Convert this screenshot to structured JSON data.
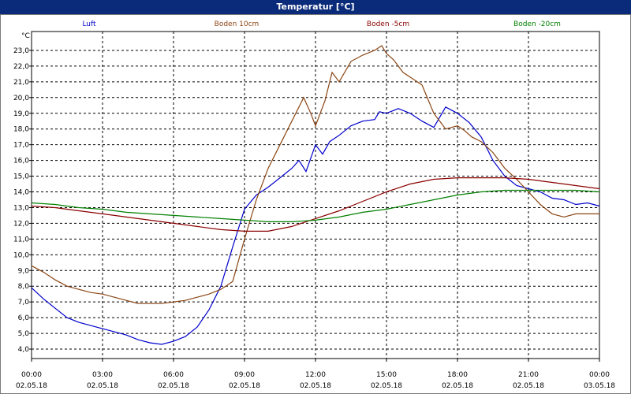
{
  "window": {
    "title": "Temperatur [°C]"
  },
  "chart_data": {
    "type": "line",
    "title": "Temperatur [°C]",
    "ylabel": "°C",
    "ylim": [
      3.4,
      24.2
    ],
    "yticks": [
      4.0,
      5.0,
      6.0,
      7.0,
      8.0,
      9.0,
      10.0,
      11.0,
      12.0,
      13.0,
      14.0,
      15.0,
      16.0,
      17.0,
      18.0,
      19.0,
      20.0,
      21.0,
      22.0,
      23.0
    ],
    "ytick_labels": [
      "4,0",
      "5,0",
      "6,0",
      "7,0",
      "8,0",
      "9,0",
      "10,0",
      "11,0",
      "12,0",
      "13,0",
      "14,0",
      "15,0",
      "16,0",
      "17,0",
      "18,0",
      "19,0",
      "20,0",
      "21,0",
      "22,0",
      "23,0"
    ],
    "xlim": [
      0,
      24
    ],
    "xticks": [
      0,
      3,
      6,
      9,
      12,
      15,
      18,
      21,
      24
    ],
    "xtick_time": [
      "00:00",
      "03:00",
      "06:00",
      "09:00",
      "12:00",
      "15:00",
      "18:00",
      "21:00",
      "00:00"
    ],
    "xtick_date": [
      "02.05.18",
      "02.05.18",
      "02.05.18",
      "02.05.18",
      "02.05.18",
      "02.05.18",
      "02.05.18",
      "02.05.18",
      "03.05.18"
    ],
    "grid": true,
    "legend_position": "top",
    "series": [
      {
        "name": "Luft",
        "color": "#0000cc",
        "x": [
          0,
          0.5,
          1,
          1.5,
          2,
          2.5,
          3,
          3.5,
          4,
          4.5,
          5,
          5.5,
          6,
          6.5,
          7,
          7.5,
          8,
          8.5,
          9,
          9.5,
          10,
          10.5,
          11,
          11.3,
          11.6,
          12,
          12.3,
          12.6,
          13,
          13.5,
          14,
          14.5,
          14.7,
          15,
          15.5,
          16,
          16.5,
          17,
          17.5,
          18,
          18.5,
          19,
          19.5,
          20,
          20.5,
          21,
          21.5,
          22,
          22.5,
          23,
          23.5,
          24
        ],
        "y": [
          7.9,
          7.2,
          6.6,
          6.0,
          5.7,
          5.5,
          5.3,
          5.1,
          4.9,
          4.6,
          4.4,
          4.3,
          4.5,
          4.8,
          5.4,
          6.5,
          8.0,
          10.5,
          12.9,
          13.8,
          14.3,
          14.9,
          15.5,
          16.0,
          15.3,
          17.0,
          16.4,
          17.2,
          17.6,
          18.2,
          18.5,
          18.6,
          19.1,
          19.0,
          19.3,
          19.0,
          18.5,
          18.1,
          19.4,
          19.0,
          18.4,
          17.5,
          16.0,
          15.0,
          14.4,
          14.2,
          14.0,
          13.6,
          13.5,
          13.2,
          13.3,
          13.1
        ]
      },
      {
        "name": "Boden 10cm",
        "color": "#8b4513",
        "x": [
          0,
          0.5,
          1,
          1.5,
          2,
          2.5,
          3,
          3.5,
          4,
          4.5,
          5,
          5.5,
          6,
          6.5,
          7,
          7.5,
          8,
          8.5,
          9,
          9.5,
          10,
          10.5,
          11,
          11.5,
          11.8,
          12,
          12.4,
          12.7,
          13,
          13.5,
          14,
          14.5,
          14.8,
          15,
          15.3,
          15.7,
          16,
          16.5,
          17,
          17.5,
          18,
          18.3,
          18.6,
          19,
          19.5,
          20,
          20.5,
          21,
          21.5,
          22,
          22.5,
          23,
          23.5,
          24
        ],
        "y": [
          9.3,
          8.9,
          8.4,
          8.0,
          7.8,
          7.6,
          7.5,
          7.3,
          7.1,
          6.9,
          6.9,
          6.9,
          7.0,
          7.1,
          7.3,
          7.5,
          7.8,
          8.3,
          11.0,
          13.5,
          15.5,
          17.0,
          18.5,
          20.0,
          19.0,
          18.2,
          19.8,
          21.6,
          21.0,
          22.3,
          22.7,
          23.0,
          23.3,
          22.8,
          22.4,
          21.6,
          21.3,
          20.8,
          19.0,
          18.0,
          18.2,
          17.9,
          17.5,
          17.2,
          16.5,
          15.5,
          14.8,
          14.0,
          13.2,
          12.6,
          12.4,
          12.6,
          12.6,
          12.6
        ]
      },
      {
        "name": "Boden -5cm",
        "color": "#8b0000",
        "x": [
          0,
          1,
          2,
          3,
          4,
          5,
          6,
          7,
          8,
          9,
          10,
          11,
          12,
          13,
          14,
          15,
          16,
          17,
          18,
          19,
          20,
          21,
          22,
          23,
          24
        ],
        "y": [
          13.1,
          13.0,
          12.8,
          12.6,
          12.4,
          12.2,
          12.0,
          11.8,
          11.6,
          11.5,
          11.5,
          11.8,
          12.3,
          12.8,
          13.4,
          14.0,
          14.5,
          14.8,
          14.9,
          14.9,
          14.9,
          14.8,
          14.6,
          14.4,
          14.2
        ]
      },
      {
        "name": "Boden -20cm",
        "color": "#008000",
        "x": [
          0,
          1,
          2,
          3,
          4,
          5,
          6,
          7,
          8,
          9,
          10,
          11,
          12,
          13,
          14,
          15,
          16,
          17,
          18,
          19,
          20,
          21,
          22,
          23,
          24
        ],
        "y": [
          13.3,
          13.2,
          13.0,
          12.9,
          12.7,
          12.6,
          12.5,
          12.4,
          12.3,
          12.2,
          12.1,
          12.1,
          12.2,
          12.4,
          12.7,
          12.9,
          13.2,
          13.5,
          13.8,
          14.0,
          14.1,
          14.1,
          14.1,
          14.1,
          14.0
        ]
      }
    ]
  }
}
